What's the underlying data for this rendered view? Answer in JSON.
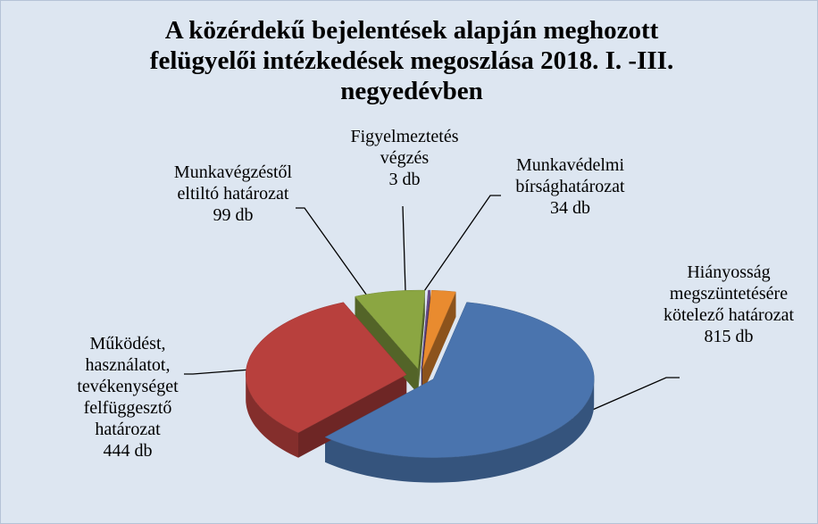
{
  "chart_data": {
    "type": "pie",
    "title": "A közérdekű bejelentések alapján meghozott felügyelői intézkedések megoszlása 2018. I. -III. negyedévben",
    "categories": [
      "Hiányosság megszüntetésére kötelező határozat",
      "Működést, használatot, tevékenységet felfüggesztő határozat",
      "Munkavégzéstől eltiltó határozat",
      "Figyelmeztetés végzés",
      "Munkavédelmi bírsághatározat"
    ],
    "values": [
      815,
      444,
      99,
      3,
      34
    ],
    "value_labels": [
      "815 db",
      "444 db",
      "99 db",
      "3 db",
      "34 db"
    ],
    "colors": [
      "#4a74ae",
      "#b8403d",
      "#8ba642",
      "#6b4e8e",
      "#e98b2f"
    ]
  }
}
